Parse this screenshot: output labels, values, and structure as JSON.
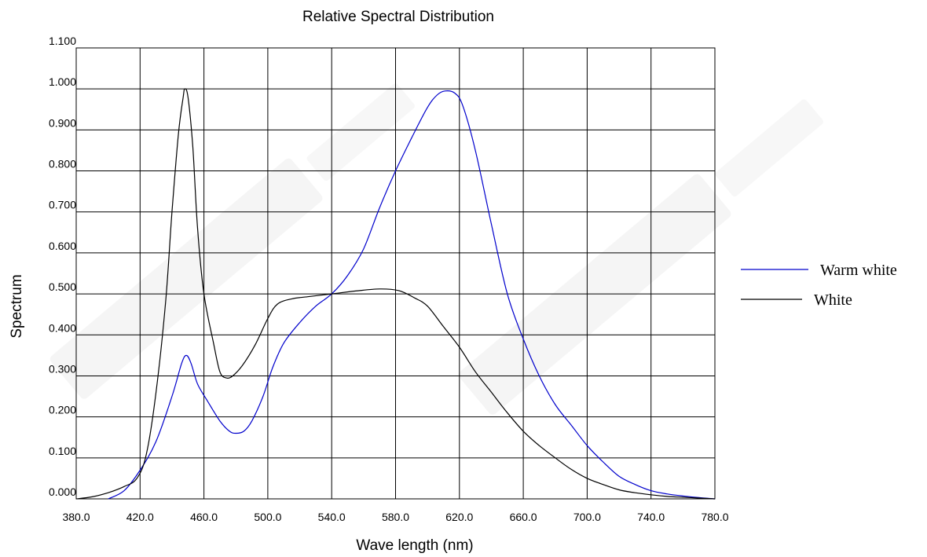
{
  "chart_data": {
    "type": "line",
    "title": "Relative Spectral Distribution",
    "xlabel": "Wave length (nm)",
    "ylabel": "Spectrum",
    "xlim": [
      380,
      780
    ],
    "ylim": [
      0,
      1.1
    ],
    "x_tick_labels": [
      "380.0",
      "420.0",
      "460.0",
      "500.0",
      "540.0",
      "580.0",
      "620.0",
      "660.0",
      "700.0",
      "740.0",
      "780.0"
    ],
    "y_tick_labels": [
      "0.000",
      "0.100",
      "0.200",
      "0.300",
      "0.400",
      "0.500",
      "0.600",
      "0.700",
      "0.800",
      "0.900",
      "1.000",
      "1.100"
    ],
    "grid": true,
    "legend_position": "right",
    "series": [
      {
        "name": "Warm white",
        "color": "#0000cc",
        "points": [
          [
            400,
            0.0
          ],
          [
            410,
            0.02
          ],
          [
            420,
            0.07
          ],
          [
            430,
            0.14
          ],
          [
            440,
            0.25
          ],
          [
            446,
            0.33
          ],
          [
            449,
            0.35
          ],
          [
            452,
            0.33
          ],
          [
            456,
            0.28
          ],
          [
            462,
            0.24
          ],
          [
            470,
            0.19
          ],
          [
            476,
            0.165
          ],
          [
            480,
            0.16
          ],
          [
            485,
            0.165
          ],
          [
            490,
            0.19
          ],
          [
            497,
            0.25
          ],
          [
            503,
            0.32
          ],
          [
            510,
            0.38
          ],
          [
            520,
            0.43
          ],
          [
            530,
            0.47
          ],
          [
            540,
            0.5
          ],
          [
            550,
            0.545
          ],
          [
            560,
            0.61
          ],
          [
            570,
            0.71
          ],
          [
            580,
            0.8
          ],
          [
            590,
            0.88
          ],
          [
            600,
            0.955
          ],
          [
            606,
            0.985
          ],
          [
            611,
            0.995
          ],
          [
            617,
            0.99
          ],
          [
            622,
            0.96
          ],
          [
            630,
            0.85
          ],
          [
            640,
            0.67
          ],
          [
            650,
            0.5
          ],
          [
            660,
            0.39
          ],
          [
            670,
            0.3
          ],
          [
            680,
            0.23
          ],
          [
            690,
            0.18
          ],
          [
            700,
            0.13
          ],
          [
            710,
            0.09
          ],
          [
            720,
            0.055
          ],
          [
            730,
            0.035
          ],
          [
            740,
            0.02
          ],
          [
            750,
            0.012
          ],
          [
            760,
            0.007
          ],
          [
            770,
            0.003
          ],
          [
            780,
            0.0
          ]
        ]
      },
      {
        "name": "White",
        "color": "#000000",
        "points": [
          [
            380,
            0.0
          ],
          [
            390,
            0.005
          ],
          [
            400,
            0.015
          ],
          [
            410,
            0.03
          ],
          [
            418,
            0.05
          ],
          [
            424,
            0.11
          ],
          [
            430,
            0.26
          ],
          [
            436,
            0.48
          ],
          [
            440,
            0.7
          ],
          [
            444,
            0.89
          ],
          [
            447,
            0.98
          ],
          [
            448,
            1.0
          ],
          [
            450,
            0.98
          ],
          [
            453,
            0.86
          ],
          [
            456,
            0.66
          ],
          [
            460,
            0.5
          ],
          [
            466,
            0.38
          ],
          [
            470,
            0.31
          ],
          [
            474,
            0.295
          ],
          [
            478,
            0.3
          ],
          [
            484,
            0.325
          ],
          [
            492,
            0.375
          ],
          [
            500,
            0.44
          ],
          [
            506,
            0.475
          ],
          [
            515,
            0.488
          ],
          [
            525,
            0.493
          ],
          [
            540,
            0.5
          ],
          [
            555,
            0.507
          ],
          [
            570,
            0.512
          ],
          [
            582,
            0.508
          ],
          [
            592,
            0.49
          ],
          [
            600,
            0.47
          ],
          [
            610,
            0.42
          ],
          [
            620,
            0.37
          ],
          [
            630,
            0.31
          ],
          [
            640,
            0.26
          ],
          [
            650,
            0.21
          ],
          [
            660,
            0.165
          ],
          [
            670,
            0.13
          ],
          [
            680,
            0.1
          ],
          [
            690,
            0.072
          ],
          [
            700,
            0.05
          ],
          [
            710,
            0.035
          ],
          [
            720,
            0.022
          ],
          [
            730,
            0.015
          ],
          [
            740,
            0.01
          ],
          [
            750,
            0.006
          ],
          [
            760,
            0.004
          ],
          [
            770,
            0.002
          ],
          [
            780,
            0.0
          ]
        ]
      }
    ]
  }
}
